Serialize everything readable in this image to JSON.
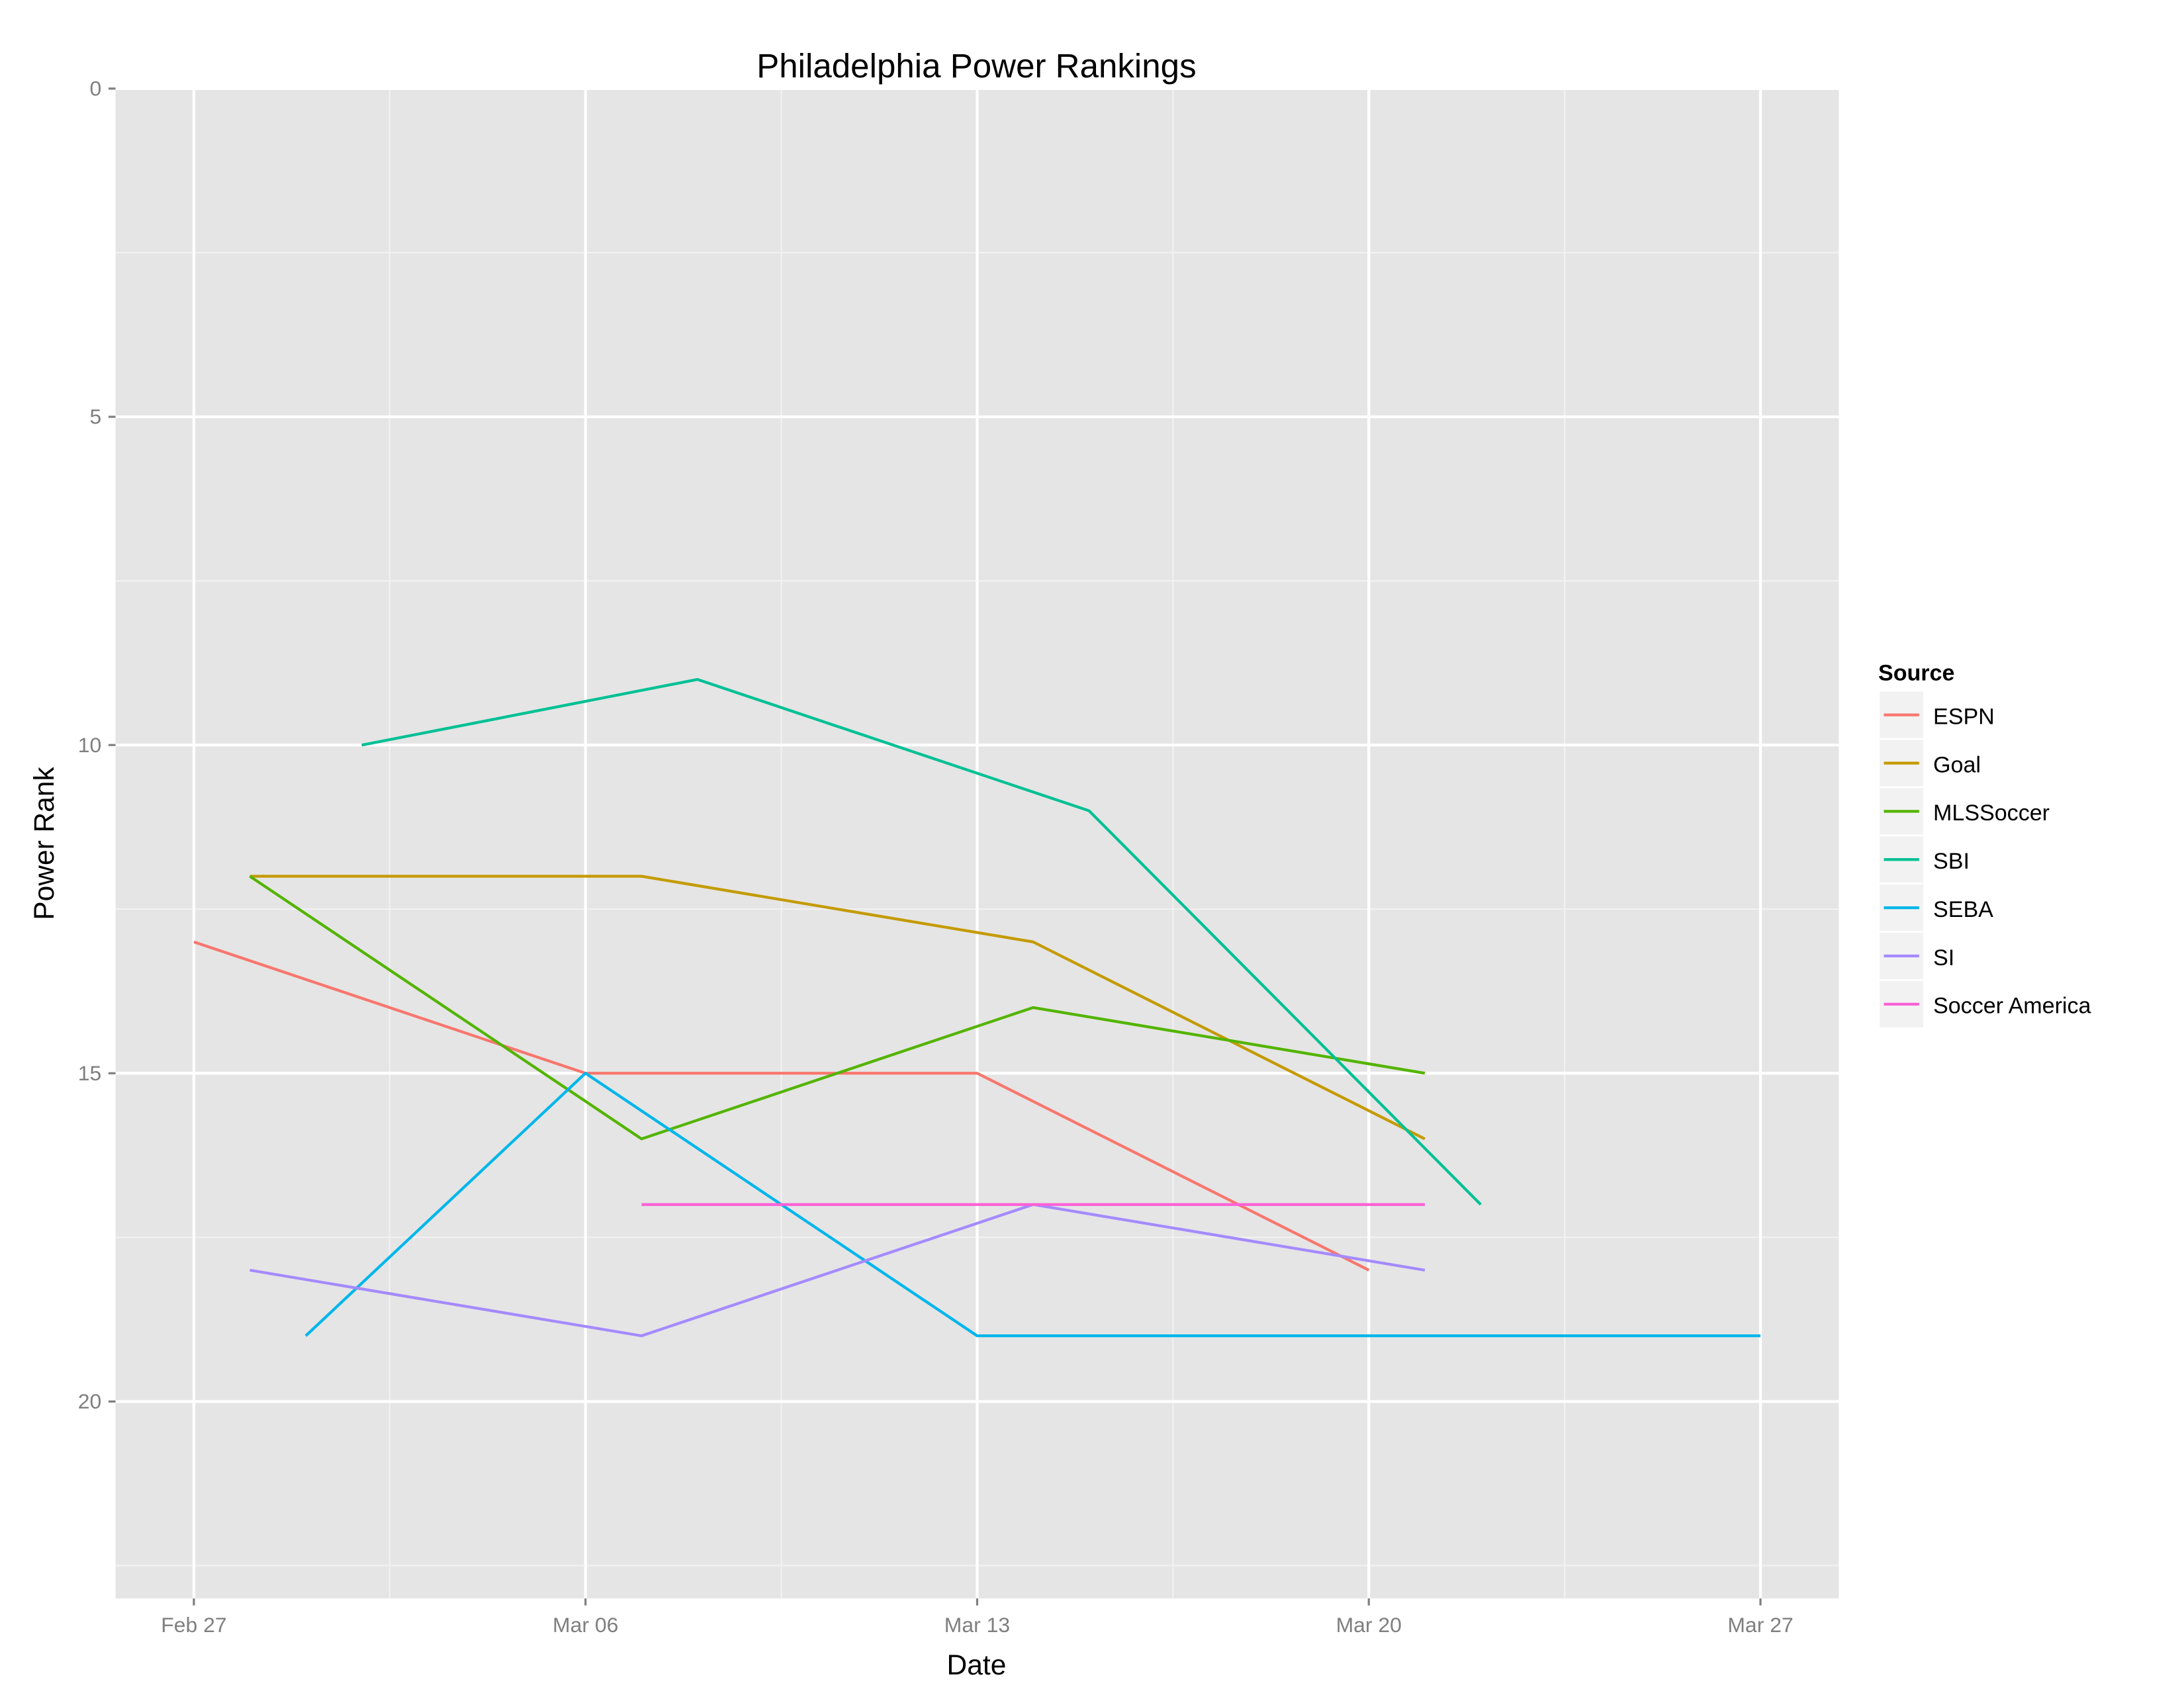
{
  "chart_data": {
    "type": "line",
    "title": "Philadelphia Power Rankings",
    "xlabel": "Date",
    "ylabel": "Power Rank",
    "x_unit": "days since Feb 27",
    "xlim": [
      -1.4,
      29.4
    ],
    "ylim": [
      0,
      23
    ],
    "y_reversed": true,
    "x_ticks": [
      {
        "day": 0,
        "label": "Feb 27"
      },
      {
        "day": 7,
        "label": "Mar 06"
      },
      {
        "day": 14,
        "label": "Mar 13"
      },
      {
        "day": 21,
        "label": "Mar 20"
      },
      {
        "day": 28,
        "label": "Mar 27"
      }
    ],
    "y_ticks": [
      0,
      5,
      10,
      15,
      20
    ],
    "grid": true,
    "legend": {
      "title": "Source",
      "position": "right"
    },
    "series": [
      {
        "name": "ESPN",
        "color": "#F8766D",
        "points": [
          [
            0,
            13
          ],
          [
            7,
            15
          ],
          [
            14,
            15
          ],
          [
            21,
            18
          ]
        ]
      },
      {
        "name": "Goal",
        "color": "#C49A00",
        "points": [
          [
            1,
            12
          ],
          [
            8,
            12
          ],
          [
            15,
            13
          ],
          [
            22,
            16
          ]
        ]
      },
      {
        "name": "MLSSoccer",
        "color": "#53B400",
        "points": [
          [
            1,
            12
          ],
          [
            8,
            16
          ],
          [
            15,
            14
          ],
          [
            22,
            15
          ]
        ]
      },
      {
        "name": "SBI",
        "color": "#00C094",
        "points": [
          [
            3,
            10
          ],
          [
            9,
            9
          ],
          [
            16,
            11
          ],
          [
            23,
            17
          ]
        ]
      },
      {
        "name": "SEBA",
        "color": "#00B6EB",
        "points": [
          [
            2,
            19
          ],
          [
            7,
            15
          ],
          [
            14,
            19
          ],
          [
            21,
            19
          ],
          [
            28,
            19
          ]
        ]
      },
      {
        "name": "SI",
        "color": "#A58AFF",
        "points": [
          [
            1,
            18
          ],
          [
            8,
            19
          ],
          [
            15,
            17
          ],
          [
            22,
            18
          ]
        ]
      },
      {
        "name": "Soccer America",
        "color": "#FB61D7",
        "points": [
          [
            8,
            17
          ],
          [
            15,
            17
          ],
          [
            22,
            17
          ]
        ]
      }
    ]
  }
}
